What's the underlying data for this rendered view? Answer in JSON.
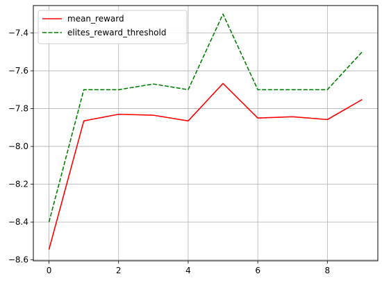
{
  "chart_data": {
    "type": "line",
    "title": "",
    "xlabel": "",
    "ylabel": "",
    "x": [
      0,
      1,
      2,
      3,
      4,
      5,
      6,
      7,
      8,
      9
    ],
    "xlim": [
      -0.45,
      9.45
    ],
    "ylim": [
      -8.605,
      -7.255
    ],
    "xticks": [
      0,
      2,
      4,
      6,
      8
    ],
    "yticks": [
      -8.6,
      -8.4,
      -8.2,
      -8.0,
      -7.8,
      -7.6,
      -7.4
    ],
    "xtick_labels": [
      "0",
      "2",
      "4",
      "6",
      "8"
    ],
    "ytick_labels": [
      "−8.6",
      "−8.4",
      "−8.2",
      "−8.0",
      "−7.8",
      "−7.6",
      "−7.4"
    ],
    "grid": true,
    "legend_position": "upper-left",
    "series": [
      {
        "name": "mean_reward",
        "color": "#ff0000",
        "line_style": "solid",
        "values": [
          -8.545,
          -7.865,
          -7.83,
          -7.835,
          -7.865,
          -7.667,
          -7.85,
          -7.843,
          -7.858,
          -7.752
        ]
      },
      {
        "name": "elites_reward_threshold",
        "color": "#008000",
        "line_style": "dashed",
        "values": [
          -8.4,
          -7.7,
          -7.7,
          -7.67,
          -7.7,
          -7.3,
          -7.7,
          -7.7,
          -7.7,
          -7.5
        ]
      }
    ]
  }
}
